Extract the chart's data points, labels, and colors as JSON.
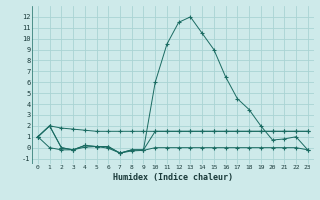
{
  "xlabel": "Humidex (Indice chaleur)",
  "background_color": "#ceeaea",
  "grid_color": "#aad4d4",
  "line_color": "#1a6b62",
  "x_values": [
    0,
    1,
    2,
    3,
    4,
    5,
    6,
    7,
    8,
    9,
    10,
    11,
    12,
    13,
    14,
    15,
    16,
    17,
    18,
    19,
    20,
    21,
    22,
    23
  ],
  "series_peak": [
    1.0,
    2.0,
    0.0,
    -0.2,
    0.2,
    0.1,
    0.1,
    -0.5,
    -0.2,
    -0.2,
    6.0,
    9.5,
    11.5,
    12.0,
    10.5,
    9.0,
    6.5,
    4.5,
    3.5,
    2.0,
    0.7,
    0.8,
    1.0,
    -0.2
  ],
  "series_high": [
    1.0,
    2.0,
    1.8,
    1.7,
    1.6,
    1.5,
    1.5,
    1.5,
    1.5,
    1.5,
    1.5,
    1.5,
    1.5,
    1.5,
    1.5,
    1.5,
    1.5,
    1.5,
    1.5,
    1.5,
    1.5,
    1.5,
    1.5,
    1.5
  ],
  "series_mid": [
    1.0,
    2.0,
    0.0,
    -0.2,
    0.2,
    0.1,
    0.1,
    -0.5,
    -0.2,
    -0.2,
    1.5,
    1.5,
    1.5,
    1.5,
    1.5,
    1.5,
    1.5,
    1.5,
    1.5,
    1.5,
    1.5,
    1.5,
    1.5,
    1.5
  ],
  "series_low": [
    1.0,
    0.0,
    -0.2,
    -0.2,
    0.05,
    0.1,
    -0.05,
    -0.5,
    -0.3,
    -0.25,
    0.0,
    0.0,
    0.0,
    0.0,
    0.0,
    0.0,
    0.0,
    0.0,
    0.0,
    0.0,
    0.0,
    0.0,
    0.0,
    -0.2
  ],
  "ylim": [
    -1.5,
    13.0
  ],
  "xlim": [
    -0.5,
    23.5
  ],
  "yticks": [
    -1,
    0,
    1,
    2,
    3,
    4,
    5,
    6,
    7,
    8,
    9,
    10,
    11,
    12
  ],
  "xticks": [
    0,
    1,
    2,
    3,
    4,
    5,
    6,
    7,
    8,
    9,
    10,
    11,
    12,
    13,
    14,
    15,
    16,
    17,
    18,
    19,
    20,
    21,
    22,
    23
  ]
}
